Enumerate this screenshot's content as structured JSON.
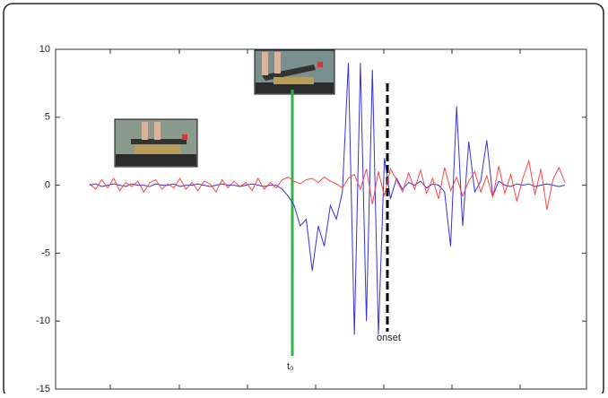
{
  "chart_data": {
    "type": "line",
    "ylim": [
      -15,
      10
    ],
    "yticks": [
      -15,
      -10,
      -5,
      0,
      5,
      10
    ],
    "series": [
      {
        "color": "#3333dd",
        "values": [
          0,
          0.1,
          -0.1,
          0,
          0.1,
          0,
          -0.1,
          0.1,
          0,
          0,
          -0.1,
          0.1,
          0,
          0,
          0.1,
          -0.1,
          0,
          0,
          0.1,
          0,
          -0.1,
          0,
          0.1,
          0,
          0,
          -0.1,
          0,
          0.1,
          0,
          -0.1,
          0,
          0,
          -0.3,
          -0.8,
          -1.5,
          -3,
          -2.5,
          -6.3,
          -3,
          -4.5,
          -1.5,
          -2.5,
          -0.5,
          9,
          -11,
          9,
          -10,
          8.5,
          -11,
          2,
          -1,
          0.5,
          -0.3,
          0.2,
          0,
          0.3,
          -0.2,
          0.1,
          0,
          -0.5,
          -4.5,
          5.8,
          -3,
          3.2,
          -0.5,
          0.3,
          3.3,
          -0.8,
          0.3,
          0,
          -0.1,
          0.1,
          0,
          0.1,
          -0.1,
          0,
          0.1,
          0,
          -0.1,
          0
        ]
      },
      {
        "color": "#ff4444",
        "values": [
          0.1,
          -0.3,
          0.4,
          -0.2,
          0.5,
          -0.4,
          0.2,
          -0.1,
          0.3,
          -0.5,
          0.2,
          0.4,
          -0.3,
          0.1,
          -0.2,
          0.5,
          -0.3,
          0.2,
          -0.4,
          0.3,
          0.1,
          -0.5,
          0.4,
          -0.2,
          0.3,
          -0.1,
          0.2,
          -0.4,
          0.5,
          -0.3,
          0.2,
          -0.2,
          0.4,
          0.6,
          0.3,
          0.1,
          0.4,
          0.5,
          0.2,
          0.6,
          0.3,
          0.1,
          -0.2,
          0.5,
          0.8,
          -0.3,
          1.2,
          -1.4,
          1.0,
          -0.8,
          1.2,
          0.4,
          -0.5,
          0.9,
          -0.3,
          1.1,
          -0.6,
          0.5,
          -1.0,
          1.3,
          -0.4,
          0.6,
          -0.8,
          0.3,
          1.0,
          -0.5,
          0.7,
          -0.9,
          1.4,
          -0.6,
          0.8,
          -1.2,
          0.5,
          1.8,
          -0.7,
          1.2,
          -1.8,
          0.4,
          1.3,
          0.2
        ]
      }
    ],
    "annotations": [
      "t₀",
      "onset"
    ]
  }
}
